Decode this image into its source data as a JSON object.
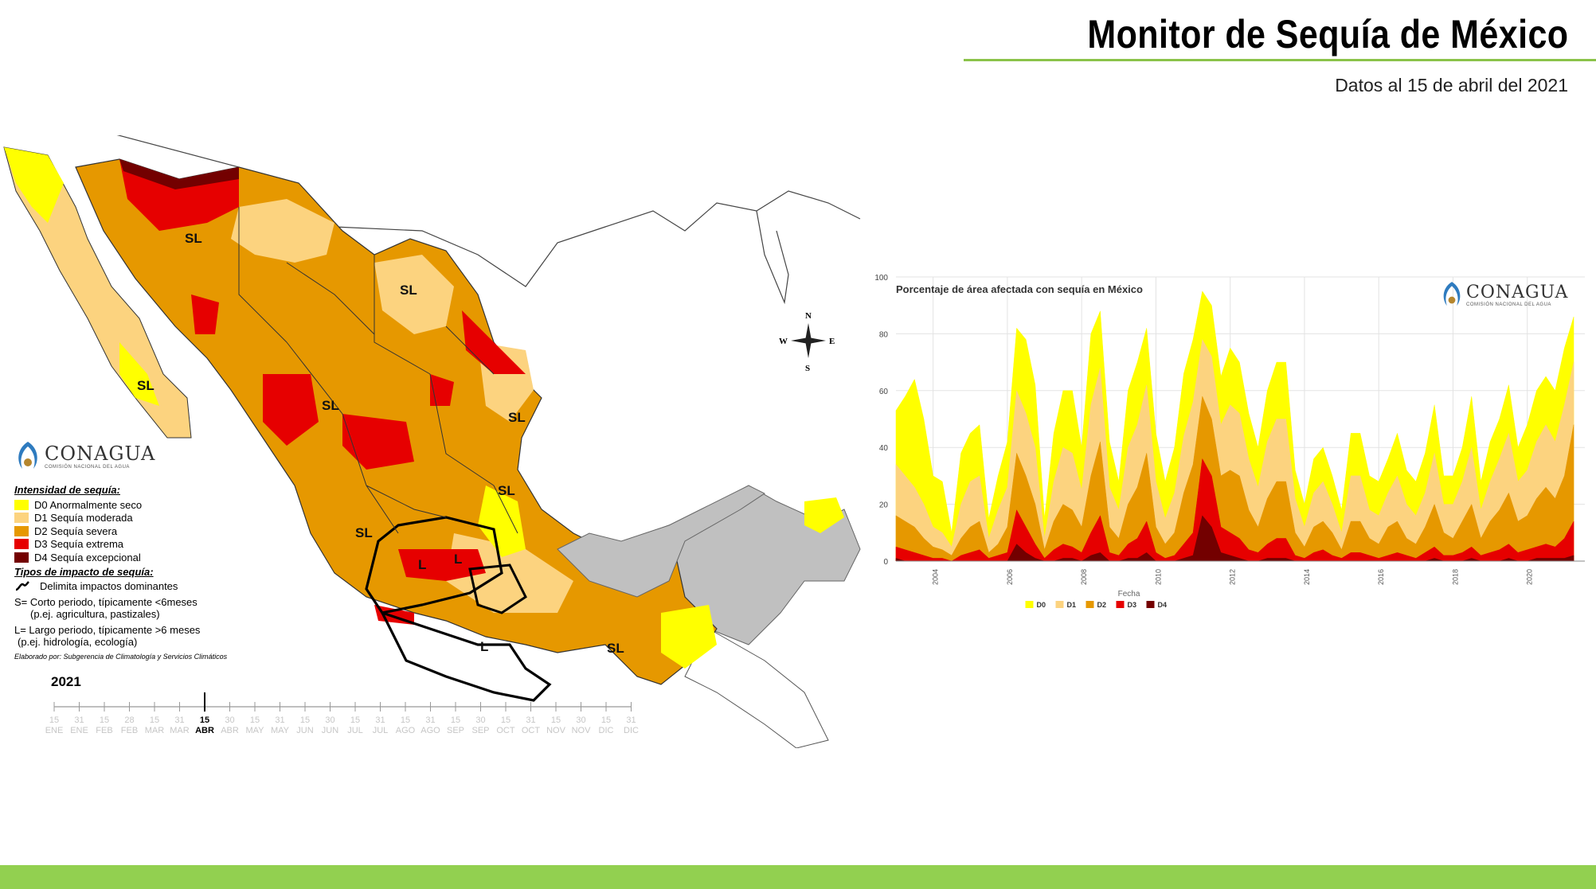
{
  "header": {
    "title": "Monitor de Sequía de México",
    "subtitle": "Datos al 15 de abril  del 2021"
  },
  "brand": {
    "name": "CONAGUA",
    "tagline": "COMISIÓN NACIONAL DEL AGUA"
  },
  "colors": {
    "D0": "#ffff00",
    "D1": "#fcd37f",
    "D2": "#e69800",
    "D3": "#e60000",
    "D4": "#730000",
    "accent_green": "#92d050",
    "neighbors": "#c0c0c0"
  },
  "map": {
    "impact_labels": [
      "SL",
      "SL",
      "SL",
      "SL",
      "SL",
      "SL",
      "SL",
      "SL",
      "L",
      "L",
      "L"
    ],
    "compass": {
      "north": "N",
      "south": "S",
      "east": "E",
      "west": "W"
    }
  },
  "legend": {
    "intensity_title": "Intensidad de sequía:",
    "items": [
      {
        "code": "D0",
        "label": "D0 Anormalmente seco",
        "color": "#ffff00"
      },
      {
        "code": "D1",
        "label": "D1 Sequía moderada",
        "color": "#fcd37f"
      },
      {
        "code": "D2",
        "label": "D2 Sequía severa",
        "color": "#e69800"
      },
      {
        "code": "D3",
        "label": "D3 Sequía extrema",
        "color": "#e60000"
      },
      {
        "code": "D4",
        "label": "D4 Sequía excepcional",
        "color": "#730000"
      }
    ],
    "impact_title": "Tipos de impacto de sequía:",
    "impact_line_label": "Delimita impactos dominantes",
    "short_term_1": "S= Corto periodo, típicamente <6meses",
    "short_term_2": "(p.ej. agricultura, pastizales)",
    "long_term_1": "L= Largo periodo, típicamente >6 meses",
    "long_term_2": "(p.ej. hidrología, ecología)",
    "credit": "Elaborado por: Subgerencia de Climatología y Servicios Climáticos"
  },
  "timeline": {
    "year": "2021",
    "current_index": 6,
    "days": [
      "15",
      "31",
      "15",
      "28",
      "15",
      "31",
      "15",
      "30",
      "15",
      "31",
      "15",
      "30",
      "15",
      "31",
      "15",
      "31",
      "15",
      "30",
      "15",
      "31",
      "15",
      "30",
      "15",
      "31"
    ],
    "months": [
      "ENE",
      "ENE",
      "FEB",
      "FEB",
      "MAR",
      "MAR",
      "ABR",
      "ABR",
      "MAY",
      "MAY",
      "JUN",
      "JUN",
      "JUL",
      "JUL",
      "AGO",
      "AGO",
      "SEP",
      "SEP",
      "OCT",
      "OCT",
      "NOV",
      "NOV",
      "DIC",
      "DIC"
    ]
  },
  "chart_data": {
    "type": "area",
    "title": "Porcentaje de área afectada con sequía en México",
    "xlabel": "Fecha",
    "ylabel": "",
    "ylim": [
      0,
      100
    ],
    "yticks": [
      0,
      20,
      40,
      60,
      80,
      100
    ],
    "xticks": [
      "2004",
      "2006",
      "2008",
      "2010",
      "2012",
      "2014",
      "2016",
      "2018",
      "2020"
    ],
    "grid": true,
    "legend_position": "bottom",
    "x": [
      2003.0,
      2003.25,
      2003.5,
      2003.75,
      2004.0,
      2004.25,
      2004.5,
      2004.75,
      2005.0,
      2005.25,
      2005.5,
      2005.75,
      2006.0,
      2006.25,
      2006.5,
      2006.75,
      2007.0,
      2007.25,
      2007.5,
      2007.75,
      2008.0,
      2008.25,
      2008.5,
      2008.75,
      2009.0,
      2009.25,
      2009.5,
      2009.75,
      2010.0,
      2010.25,
      2010.5,
      2010.75,
      2011.0,
      2011.25,
      2011.5,
      2011.75,
      2012.0,
      2012.25,
      2012.5,
      2012.75,
      2013.0,
      2013.25,
      2013.5,
      2013.75,
      2014.0,
      2014.25,
      2014.5,
      2014.75,
      2015.0,
      2015.25,
      2015.5,
      2015.75,
      2016.0,
      2016.25,
      2016.5,
      2016.75,
      2017.0,
      2017.25,
      2017.5,
      2017.75,
      2018.0,
      2018.25,
      2018.5,
      2018.75,
      2019.0,
      2019.25,
      2019.5,
      2019.75,
      2020.0,
      2020.25,
      2020.5,
      2020.75,
      2021.0,
      2021.25
    ],
    "series": [
      {
        "name": "D0",
        "values": [
          53,
          58,
          64,
          50,
          30,
          28,
          10,
          38,
          45,
          48,
          15,
          30,
          42,
          82,
          78,
          62,
          15,
          45,
          60,
          60,
          40,
          80,
          88,
          42,
          28,
          60,
          70,
          82,
          45,
          28,
          40,
          66,
          78,
          95,
          90,
          65,
          75,
          70,
          52,
          40,
          60,
          70,
          70,
          32,
          20,
          36,
          40,
          30,
          18,
          45,
          45,
          30,
          28,
          36,
          45,
          32,
          28,
          38,
          55,
          30,
          30,
          40,
          58,
          28,
          42,
          50,
          62,
          40,
          48,
          60,
          65,
          60,
          75,
          86
        ]
      },
      {
        "name": "D1",
        "values": [
          34,
          30,
          26,
          20,
          12,
          10,
          5,
          20,
          28,
          30,
          8,
          18,
          26,
          60,
          52,
          40,
          8,
          28,
          40,
          38,
          25,
          55,
          68,
          26,
          18,
          40,
          48,
          62,
          28,
          15,
          24,
          44,
          56,
          78,
          72,
          48,
          55,
          52,
          36,
          26,
          42,
          50,
          50,
          22,
          12,
          24,
          28,
          20,
          10,
          30,
          30,
          18,
          16,
          24,
          30,
          20,
          16,
          24,
          38,
          20,
          20,
          28,
          40,
          18,
          28,
          36,
          45,
          28,
          32,
          42,
          48,
          42,
          55,
          70
        ]
      },
      {
        "name": "D2",
        "values": [
          16,
          14,
          12,
          8,
          5,
          4,
          2,
          8,
          12,
          14,
          3,
          6,
          12,
          38,
          30,
          20,
          4,
          14,
          20,
          18,
          12,
          30,
          42,
          12,
          8,
          20,
          26,
          38,
          12,
          6,
          10,
          24,
          34,
          58,
          50,
          30,
          32,
          30,
          18,
          12,
          22,
          28,
          28,
          10,
          5,
          12,
          14,
          10,
          4,
          14,
          14,
          8,
          6,
          12,
          14,
          8,
          6,
          12,
          20,
          10,
          8,
          14,
          20,
          8,
          14,
          18,
          24,
          14,
          16,
          22,
          26,
          22,
          30,
          48
        ]
      },
      {
        "name": "D3",
        "values": [
          5,
          4,
          3,
          2,
          1,
          1,
          0,
          2,
          3,
          4,
          1,
          2,
          3,
          18,
          12,
          6,
          1,
          4,
          6,
          5,
          3,
          10,
          16,
          3,
          2,
          6,
          8,
          14,
          3,
          1,
          2,
          6,
          10,
          36,
          30,
          12,
          10,
          8,
          4,
          3,
          6,
          8,
          8,
          2,
          1,
          3,
          4,
          2,
          1,
          3,
          3,
          2,
          1,
          2,
          3,
          2,
          1,
          3,
          5,
          2,
          2,
          3,
          5,
          2,
          3,
          4,
          6,
          3,
          4,
          5,
          6,
          5,
          8,
          14
        ]
      },
      {
        "name": "D4",
        "values": [
          1,
          0,
          0,
          0,
          0,
          0,
          0,
          0,
          0,
          0,
          0,
          0,
          0,
          6,
          3,
          1,
          0,
          0,
          1,
          1,
          0,
          2,
          3,
          0,
          0,
          1,
          1,
          3,
          0,
          0,
          0,
          1,
          2,
          16,
          12,
          3,
          2,
          1,
          0,
          0,
          1,
          1,
          1,
          0,
          0,
          0,
          0,
          0,
          0,
          0,
          0,
          0,
          0,
          0,
          0,
          0,
          0,
          0,
          1,
          0,
          0,
          0,
          1,
          0,
          0,
          0,
          1,
          0,
          0,
          1,
          1,
          1,
          1,
          2
        ]
      }
    ]
  }
}
